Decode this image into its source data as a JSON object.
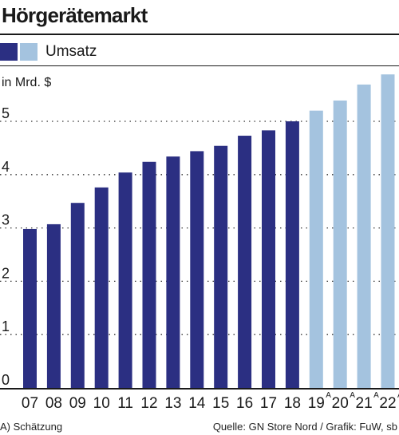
{
  "title": "Hörgerätemarkt",
  "legend": [
    {
      "label": "Umsatz",
      "colors": [
        "#2b2f82",
        "#a4c3df"
      ]
    }
  ],
  "footnote": "A) Schätzung",
  "source": "Quelle: GN Store Nord / Grafik: FuW, sb",
  "colors": {
    "actual": "#2b2f82",
    "estimate": "#a4c3df"
  },
  "chart_data": {
    "type": "bar",
    "ylabel": "in Mrd. $",
    "ylim": [
      0,
      5.9
    ],
    "yticks": [
      "0",
      "1",
      "2",
      "3",
      "4",
      "5"
    ],
    "categories": [
      "07",
      "08",
      "09",
      "10",
      "11",
      "12",
      "13",
      "14",
      "15",
      "16",
      "17",
      "18",
      "19",
      "20",
      "21",
      "22"
    ],
    "category_marks": [
      "",
      "",
      "",
      "",
      "",
      "",
      "",
      "",
      "",
      "",
      "",
      "",
      "A",
      "A",
      "A",
      "A"
    ],
    "values": [
      2.98,
      3.07,
      3.47,
      3.76,
      4.04,
      4.24,
      4.34,
      4.44,
      4.54,
      4.73,
      4.83,
      5.0,
      5.2,
      5.39,
      5.69,
      5.88
    ],
    "estimated": [
      false,
      false,
      false,
      false,
      false,
      false,
      false,
      false,
      false,
      false,
      false,
      false,
      true,
      true,
      true,
      true
    ],
    "grid": "dotted horizontal"
  }
}
